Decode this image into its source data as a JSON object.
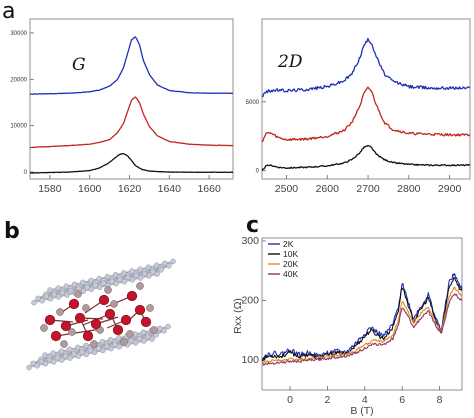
{
  "panels": {
    "a": "a",
    "b": "b",
    "c": "c"
  },
  "colors": {
    "blue": "#1f2fb5",
    "red": "#c0281e",
    "black": "#111111",
    "orange": "#e08a1f",
    "purple": "#8e3563"
  },
  "chart_data": [
    {
      "type": "line",
      "panel": "a-left",
      "annotation": "G",
      "xlim": [
        1570,
        1672
      ],
      "ylim": [
        -1500,
        33000
      ],
      "xticks": [
        1580,
        1600,
        1620,
        1640,
        1660
      ],
      "yticks": [
        0,
        10000,
        20000,
        30000
      ],
      "ytick_labels": [
        "0",
        "10000",
        "20000",
        "30000"
      ],
      "series": [
        {
          "color": "blue",
          "x": [
            1570,
            1580,
            1590,
            1600,
            1605,
            1610,
            1614,
            1617,
            1619,
            1621,
            1623,
            1625,
            1627,
            1630,
            1634,
            1640,
            1650,
            1660,
            1672
          ],
          "y": [
            16800,
            16900,
            17000,
            17300,
            17700,
            18500,
            20000,
            22500,
            25500,
            28500,
            29200,
            27500,
            24000,
            21000,
            18800,
            17600,
            17100,
            17000,
            17000
          ]
        },
        {
          "color": "red",
          "x": [
            1570,
            1580,
            1590,
            1600,
            1605,
            1610,
            1614,
            1617,
            1619,
            1621,
            1623,
            1625,
            1627,
            1630,
            1634,
            1640,
            1650,
            1660,
            1672
          ],
          "y": [
            5300,
            5500,
            5700,
            6000,
            6400,
            7000,
            8500,
            10500,
            13000,
            15500,
            16200,
            15000,
            12500,
            9800,
            7800,
            6600,
            6000,
            5800,
            5700
          ]
        },
        {
          "color": "black",
          "x": [
            1570,
            1580,
            1590,
            1600,
            1605,
            1609,
            1612,
            1615,
            1617,
            1619,
            1621,
            1623,
            1626,
            1630,
            1640,
            1650,
            1660,
            1672
          ],
          "y": [
            -200,
            -100,
            0,
            300,
            900,
            1800,
            2800,
            3800,
            4000,
            3500,
            2500,
            1400,
            600,
            200,
            0,
            -50,
            -50,
            -50
          ]
        }
      ]
    },
    {
      "type": "line",
      "panel": "a-right",
      "annotation": "2D",
      "xlim": [
        2440,
        2950
      ],
      "ylim": [
        -600,
        11000
      ],
      "xticks": [
        2500,
        2600,
        2700,
        2800,
        2900
      ],
      "yticks": [
        0,
        5000
      ],
      "ytick_labels": [
        "0",
        "5000"
      ],
      "series": [
        {
          "color": "blue",
          "x": [
            2440,
            2450,
            2460,
            2480,
            2500,
            2550,
            2600,
            2640,
            2660,
            2680,
            2690,
            2700,
            2708,
            2720,
            2740,
            2760,
            2800,
            2850,
            2900,
            2950
          ],
          "y": [
            5400,
            5700,
            5800,
            5850,
            5800,
            5900,
            6100,
            6500,
            7000,
            8200,
            9100,
            9500,
            9300,
            8300,
            7000,
            6500,
            6100,
            6000,
            6000,
            6000
          ]
        },
        {
          "color": "red",
          "x": [
            2440,
            2450,
            2460,
            2480,
            2500,
            2550,
            2600,
            2640,
            2660,
            2680,
            2690,
            2700,
            2708,
            2720,
            2740,
            2760,
            2800,
            2850,
            2900,
            2950
          ],
          "y": [
            2100,
            2700,
            2750,
            2400,
            2250,
            2300,
            2500,
            2900,
            3500,
            4700,
            5600,
            6000,
            5800,
            4800,
            3500,
            3000,
            2700,
            2650,
            2600,
            2600
          ]
        },
        {
          "color": "black",
          "x": [
            2440,
            2450,
            2460,
            2480,
            2500,
            2550,
            2600,
            2640,
            2660,
            2680,
            2690,
            2700,
            2708,
            2720,
            2740,
            2760,
            2800,
            2850,
            2900,
            2950
          ],
          "y": [
            0,
            350,
            400,
            250,
            200,
            250,
            350,
            550,
            800,
            1300,
            1700,
            1800,
            1700,
            1200,
            800,
            600,
            450,
            400,
            400,
            400
          ]
        }
      ]
    },
    {
      "type": "line",
      "panel": "c",
      "xlabel": "B (T)",
      "ylabel": "R_xx (Ω)",
      "xlim": [
        -1.5,
        9.2
      ],
      "ylim": [
        50,
        305
      ],
      "xticks": [
        0,
        2,
        4,
        6,
        8
      ],
      "yticks": [
        100,
        200,
        300
      ],
      "legend": {
        "position": "top-left",
        "entries": [
          "2K",
          "10K",
          "20K",
          "40K"
        ]
      },
      "series": [
        {
          "name": "2K",
          "color": "blue",
          "x": [
            -1.5,
            -1,
            -0.5,
            0,
            0.5,
            1,
            1.5,
            2,
            2.5,
            3,
            3.5,
            4,
            4.3,
            4.6,
            5,
            5.5,
            5.8,
            6,
            6.2,
            6.6,
            7,
            7.4,
            7.8,
            8.1,
            8.5,
            8.8,
            9.1
          ],
          "y": [
            105,
            112,
            110,
            118,
            109,
            113,
            107,
            112,
            115,
            113,
            128,
            145,
            155,
            148,
            140,
            160,
            190,
            232,
            210,
            170,
            190,
            210,
            170,
            150,
            230,
            245,
            222
          ]
        },
        {
          "name": "10K",
          "color": "black",
          "x": [
            -1.5,
            -1,
            -0.5,
            0,
            0.5,
            1,
            1.5,
            2,
            2.5,
            3,
            3.5,
            4,
            4.3,
            4.6,
            5,
            5.5,
            5.8,
            6,
            6.2,
            6.6,
            7,
            7.4,
            7.8,
            8.1,
            8.5,
            8.8,
            9.1
          ],
          "y": [
            102,
            108,
            106,
            113,
            106,
            110,
            104,
            109,
            112,
            110,
            124,
            140,
            150,
            144,
            136,
            155,
            185,
            225,
            205,
            165,
            185,
            205,
            165,
            145,
            222,
            240,
            218
          ]
        },
        {
          "name": "20K",
          "color": "orange",
          "x": [
            -1.5,
            -1,
            -0.5,
            0,
            0.5,
            1,
            1.5,
            2,
            2.5,
            3,
            3.5,
            4,
            4.5,
            5,
            5.5,
            5.8,
            6,
            6.2,
            6.6,
            7,
            7.4,
            7.8,
            8.1,
            8.5,
            8.8,
            9.1
          ],
          "y": [
            96,
            99,
            100,
            102,
            101,
            103,
            104,
            106,
            108,
            110,
            116,
            126,
            133,
            131,
            142,
            168,
            200,
            188,
            162,
            178,
            190,
            163,
            148,
            205,
            222,
            210
          ]
        },
        {
          "name": "40K",
          "color": "purple",
          "x": [
            -1.5,
            -1,
            -0.5,
            0,
            0.5,
            1,
            1.5,
            2,
            2.5,
            3,
            3.5,
            4,
            4.5,
            5,
            5.5,
            5.8,
            6,
            6.2,
            6.6,
            7,
            7.4,
            7.8,
            8.1,
            8.5,
            8.8,
            9.1
          ],
          "y": [
            93,
            95,
            96,
            98,
            98,
            100,
            101,
            103,
            105,
            107,
            112,
            120,
            127,
            126,
            136,
            160,
            190,
            180,
            156,
            170,
            182,
            158,
            144,
            196,
            212,
            202
          ]
        }
      ]
    }
  ]
}
